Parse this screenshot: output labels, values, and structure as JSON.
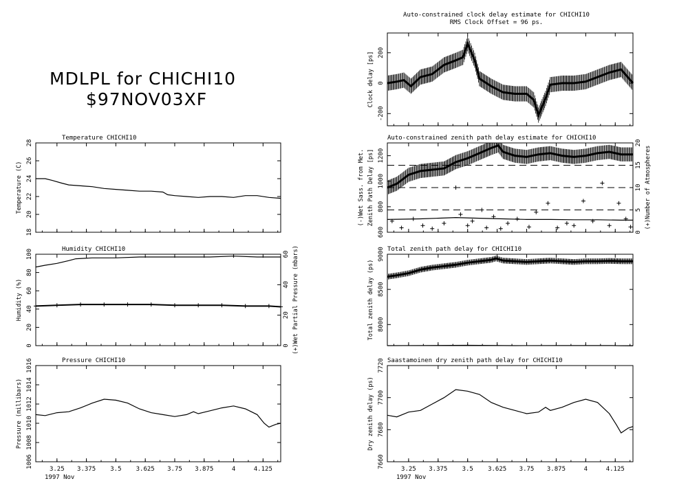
{
  "header": {
    "line1": "MDLPL for CHICHI10",
    "line2": "$97NOV03XF"
  },
  "x_axis": {
    "ticks": [
      3.25,
      3.375,
      3.5,
      3.625,
      3.75,
      3.875,
      4,
      4.125
    ],
    "tick_labels": [
      "3.25",
      "3.375",
      "3.5",
      "3.625",
      "3.75",
      "3.875",
      "4",
      "4.125"
    ],
    "range": [
      3.16,
      4.2
    ],
    "caption": "1997 Nov"
  },
  "chart_data": [
    {
      "id": "temperature",
      "type": "line",
      "title": "Temperature  CHICHI10",
      "ylabel": "Temperature (C)",
      "ylim": [
        18,
        28
      ],
      "yticks": [
        18,
        20,
        22,
        24,
        26,
        28
      ],
      "x": [
        3.16,
        3.2,
        3.23,
        3.27,
        3.3,
        3.35,
        3.4,
        3.45,
        3.5,
        3.55,
        3.6,
        3.65,
        3.7,
        3.72,
        3.75,
        3.8,
        3.85,
        3.9,
        3.95,
        4.0,
        4.05,
        4.1,
        4.15,
        4.2
      ],
      "values": [
        24.0,
        24.0,
        23.8,
        23.5,
        23.3,
        23.2,
        23.1,
        22.9,
        22.8,
        22.7,
        22.6,
        22.6,
        22.5,
        22.2,
        22.1,
        22.0,
        21.9,
        22.0,
        22.0,
        21.9,
        22.1,
        22.1,
        21.9,
        21.8
      ]
    },
    {
      "id": "humidity",
      "type": "line",
      "title": "Humidity        CHICHI10",
      "ylabel": "Humidity (%)",
      "ylabel2": "(+)Wet Partial Pressure (mbars)",
      "ylim": [
        0,
        100
      ],
      "yticks": [
        0,
        20,
        40,
        60,
        80,
        100
      ],
      "y2lim": [
        0,
        60
      ],
      "y2ticks": [
        0,
        20,
        40,
        60
      ],
      "series": [
        {
          "x": [
            3.16,
            3.2,
            3.25,
            3.3,
            3.33,
            3.4,
            3.5,
            3.6,
            3.7,
            3.8,
            3.9,
            4.0,
            4.1,
            4.2
          ],
          "values": [
            86,
            88,
            90,
            93,
            95,
            96,
            96,
            97,
            97,
            97,
            97,
            98,
            97,
            97
          ]
        },
        {
          "axis": "right",
          "marker": "+",
          "x": [
            3.16,
            3.25,
            3.35,
            3.45,
            3.55,
            3.65,
            3.75,
            3.85,
            3.95,
            4.05,
            4.15,
            4.2
          ],
          "values": [
            26,
            26.5,
            27,
            27,
            27,
            27,
            26.5,
            26.5,
            26.5,
            26,
            26,
            25.5
          ]
        }
      ]
    },
    {
      "id": "pressure",
      "type": "line",
      "title": "Pressure        CHICHI10",
      "ylabel": "Pressure (millibars)",
      "ylim": [
        1006,
        1016
      ],
      "yticks": [
        1006,
        1008,
        1010,
        1012,
        1014,
        1016
      ],
      "x": [
        3.16,
        3.2,
        3.25,
        3.3,
        3.35,
        3.4,
        3.45,
        3.5,
        3.55,
        3.6,
        3.65,
        3.7,
        3.75,
        3.8,
        3.83,
        3.85,
        3.9,
        3.95,
        4.0,
        4.05,
        4.1,
        4.13,
        4.15,
        4.18,
        4.2
      ],
      "values": [
        1010.9,
        1010.8,
        1011.1,
        1011.2,
        1011.6,
        1012.1,
        1012.5,
        1012.4,
        1012.1,
        1011.5,
        1011.1,
        1010.9,
        1010.7,
        1010.9,
        1011.2,
        1011.0,
        1011.3,
        1011.6,
        1011.8,
        1011.5,
        1010.9,
        1010.0,
        1009.6,
        1009.9,
        1010.0
      ]
    },
    {
      "id": "clock",
      "type": "line",
      "title": "Auto-constrained clock delay estimate for CHICHI10",
      "subtitle": "RMS Clock Offset = 96 ps.",
      "ylabel": "Clock delay [ps]",
      "ylim": [
        -280,
        330
      ],
      "yticks": [
        -200,
        0,
        200
      ],
      "errorbar": 50,
      "x": [
        3.16,
        3.2,
        3.23,
        3.26,
        3.3,
        3.35,
        3.4,
        3.45,
        3.48,
        3.5,
        3.53,
        3.55,
        3.6,
        3.65,
        3.7,
        3.75,
        3.78,
        3.8,
        3.83,
        3.85,
        3.9,
        3.95,
        4.0,
        4.05,
        4.1,
        4.15,
        4.2
      ],
      "values": [
        0,
        10,
        20,
        -20,
        40,
        60,
        120,
        150,
        170,
        260,
        150,
        30,
        -20,
        -60,
        -70,
        -70,
        -110,
        -210,
        -100,
        -10,
        0,
        0,
        10,
        40,
        70,
        90,
        0
      ]
    },
    {
      "id": "zenith",
      "type": "line",
      "title": "Auto-constrained zenith path delay estimate for CHICHI10",
      "ylabel": "Zenith Path Delay  [ps]",
      "ylabel_left": "(-)Wet Sass. from Met.",
      "ylabel2": "(+)Number of Atmospheres",
      "ylim": [
        600,
        1300
      ],
      "yticks": [
        600,
        800,
        1000,
        1200
      ],
      "y2lim": [
        0,
        20
      ],
      "y2ticks": [
        0,
        5,
        10,
        15,
        20
      ],
      "dashed_levels_right": [
        5,
        10,
        15
      ],
      "errorbar": 55,
      "series": [
        {
          "marker": "errorbar",
          "x": [
            3.16,
            3.2,
            3.25,
            3.3,
            3.35,
            3.4,
            3.45,
            3.5,
            3.55,
            3.6,
            3.63,
            3.65,
            3.7,
            3.75,
            3.8,
            3.85,
            3.9,
            3.95,
            4.0,
            4.05,
            4.1,
            4.15,
            4.2
          ],
          "values": [
            950,
            980,
            1050,
            1080,
            1090,
            1100,
            1150,
            1180,
            1220,
            1260,
            1280,
            1230,
            1200,
            1190,
            1210,
            1220,
            1200,
            1190,
            1200,
            1220,
            1230,
            1210,
            1210
          ]
        },
        {
          "name": "(-)Wet Sass. from Met.",
          "x": [
            3.16,
            3.3,
            3.45,
            3.55,
            3.65,
            3.75,
            3.85,
            3.95,
            4.05,
            4.15,
            4.2
          ],
          "values": [
            700,
            705,
            715,
            710,
            705,
            700,
            700,
            698,
            698,
            695,
            695
          ]
        },
        {
          "name": "(+)Number of Atmospheres",
          "axis": "right",
          "marker": "+",
          "x": [
            3.18,
            3.22,
            3.27,
            3.31,
            3.35,
            3.4,
            3.45,
            3.47,
            3.5,
            3.52,
            3.56,
            3.58,
            3.61,
            3.64,
            3.67,
            3.71,
            3.76,
            3.79,
            3.84,
            3.88,
            3.92,
            3.95,
            3.99,
            4.03,
            4.07,
            4.1,
            4.14,
            4.17,
            4.19
          ],
          "values": [
            2.5,
            1.0,
            3.0,
            1.5,
            0.8,
            2.0,
            10.0,
            4.0,
            1.5,
            2.5,
            5.0,
            1.0,
            3.5,
            0.8,
            2.0,
            3.0,
            1.2,
            4.5,
            6.5,
            1.0,
            2.0,
            1.5,
            7.0,
            2.5,
            11.0,
            1.5,
            6.5,
            3.0,
            1.2
          ]
        }
      ]
    },
    {
      "id": "total",
      "type": "line",
      "title": "Total zenith path delay for CHICHI10",
      "ylabel": "Total zenith delay (ps)",
      "ylim": [
        7700,
        9000
      ],
      "yticks": [
        8000,
        8500,
        9000
      ],
      "series": [
        {
          "marker": "errorbar",
          "x": [
            3.16,
            3.2,
            3.25,
            3.3,
            3.35,
            3.4,
            3.45,
            3.5,
            3.55,
            3.6,
            3.62,
            3.65,
            3.7,
            3.75,
            3.8,
            3.85,
            3.9,
            3.95,
            4.0,
            4.05,
            4.1,
            4.15,
            4.2
          ],
          "values": [
            8680,
            8700,
            8730,
            8780,
            8810,
            8830,
            8850,
            8880,
            8900,
            8920,
            8940,
            8910,
            8900,
            8890,
            8900,
            8910,
            8900,
            8890,
            8900,
            8900,
            8905,
            8900,
            8900
          ]
        },
        {
          "x": [
            3.16,
            3.3,
            3.5,
            3.7,
            3.9,
            4.1,
            4.15,
            4.2
          ],
          "values": [
            7700,
            7702,
            7705,
            7700,
            7702,
            7702,
            7698,
            7697
          ]
        }
      ]
    },
    {
      "id": "dry",
      "type": "line",
      "title": "Saastamoinen dry zenith path delay for CHICHI10",
      "ylabel": "Dry zenith delay (ps)",
      "ylim": [
        7660,
        7720
      ],
      "yticks": [
        7660,
        7680,
        7700,
        7720
      ],
      "x": [
        3.16,
        3.2,
        3.25,
        3.3,
        3.35,
        3.4,
        3.45,
        3.5,
        3.55,
        3.6,
        3.65,
        3.7,
        3.75,
        3.8,
        3.83,
        3.85,
        3.9,
        3.95,
        4.0,
        4.05,
        4.1,
        4.13,
        4.15,
        4.18,
        4.2
      ],
      "values": [
        7689,
        7688,
        7691,
        7692,
        7696,
        7700,
        7705,
        7704,
        7702,
        7697,
        7694,
        7692,
        7690,
        7691,
        7694,
        7692,
        7694,
        7697,
        7699,
        7697,
        7690,
        7683,
        7678,
        7681,
        7682
      ]
    }
  ]
}
